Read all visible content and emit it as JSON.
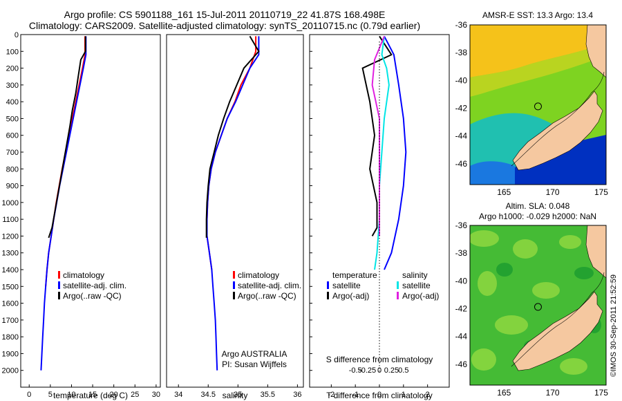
{
  "header": {
    "line1": "Argo profile: CS 5901188_161 15-Jul-2011 20110719_22 41.87S 168.498E",
    "line2": "Climatology: CARS2009. Satellite-adjusted climatology: synTS_20110715.nc (0.79d earlier)"
  },
  "colors": {
    "climatology": "#ff0000",
    "satellite": "#0000ff",
    "argo": "#000000",
    "salinity_satellite": "#00e5e5",
    "salinity_argo": "#e020e0",
    "land": "#f5c8a0",
    "sst_warm": "#f5c21a",
    "sst_mid": "#20c060",
    "sst_cool": "#0030c0",
    "sla_field": "#50c030"
  },
  "chart_data": [
    {
      "type": "line",
      "panel": "temperature",
      "xlabel": "temperature (deg C)",
      "ylabel": "",
      "xlim": [
        -2,
        31
      ],
      "ylim": [
        2100,
        0
      ],
      "xticks": [
        0,
        5,
        10,
        15,
        20,
        25,
        30
      ],
      "yticks": [
        0,
        100,
        200,
        300,
        400,
        500,
        600,
        700,
        800,
        900,
        1000,
        1100,
        1200,
        1300,
        1400,
        1500,
        1600,
        1700,
        1800,
        1900,
        2000
      ],
      "legend": {
        "position": "bottom-right",
        "items": [
          "climatology",
          "satellite-adj. clim.",
          "Argo(..raw -QC)"
        ]
      },
      "series": [
        {
          "name": "climatology",
          "points": [
            [
              13.2,
              10
            ],
            [
              13.2,
              120
            ],
            [
              12.6,
              200
            ],
            [
              11.8,
              300
            ],
            [
              11.0,
              400
            ],
            [
              10.2,
              500
            ],
            [
              9.4,
              600
            ],
            [
              8.6,
              700
            ],
            [
              7.8,
              800
            ],
            [
              7.1,
              900
            ],
            [
              6.4,
              1000
            ],
            [
              5.8,
              1100
            ],
            [
              5.2,
              1200
            ],
            [
              4.6,
              1300
            ],
            [
              4.2,
              1400
            ],
            [
              3.9,
              1500
            ]
          ]
        },
        {
          "name": "satellite-adj. clim.",
          "points": [
            [
              13.4,
              10
            ],
            [
              13.4,
              120
            ],
            [
              12.8,
              200
            ],
            [
              12.0,
              300
            ],
            [
              11.2,
              400
            ],
            [
              10.4,
              500
            ],
            [
              9.6,
              600
            ],
            [
              8.8,
              700
            ],
            [
              8.0,
              800
            ],
            [
              7.2,
              900
            ],
            [
              6.5,
              1000
            ],
            [
              5.8,
              1100
            ],
            [
              5.2,
              1200
            ],
            [
              4.6,
              1300
            ],
            [
              4.2,
              1400
            ],
            [
              3.9,
              1500
            ],
            [
              3.6,
              1600
            ],
            [
              3.4,
              1700
            ],
            [
              3.2,
              1800
            ],
            [
              3.0,
              1900
            ],
            [
              2.8,
              2000
            ]
          ]
        },
        {
          "name": "Argo(..raw -QC)",
          "points": [
            [
              13.3,
              10
            ],
            [
              13.3,
              100
            ],
            [
              12.2,
              150
            ],
            [
              11.6,
              250
            ],
            [
              11.0,
              350
            ],
            [
              10.2,
              450
            ],
            [
              9.6,
              550
            ],
            [
              8.9,
              650
            ],
            [
              8.2,
              750
            ],
            [
              7.5,
              850
            ],
            [
              6.8,
              950
            ],
            [
              6.1,
              1050
            ],
            [
              5.4,
              1150
            ],
            [
              4.6,
              1210
            ]
          ]
        }
      ]
    },
    {
      "type": "line",
      "panel": "salinity",
      "xlabel": "salinity",
      "xlim": [
        33.8,
        36.1
      ],
      "ylim": [
        2100,
        0
      ],
      "xticks": [
        34,
        34.5,
        35,
        35.5,
        36
      ],
      "legend": {
        "position": "bottom-right",
        "items": [
          "climatology",
          "satellite-adj. clim.",
          "Argo(..raw -QC)"
        ]
      },
      "annotations": [
        "Argo AUSTRALIA",
        "PI: Susan Wijffels"
      ],
      "series": [
        {
          "name": "climatology",
          "points": [
            [
              35.3,
              10
            ],
            [
              35.3,
              100
            ],
            [
              35.2,
              200
            ],
            [
              35.05,
              300
            ],
            [
              34.95,
              400
            ],
            [
              34.82,
              500
            ],
            [
              34.72,
              600
            ],
            [
              34.62,
              700
            ],
            [
              34.55,
              800
            ],
            [
              34.51,
              900
            ],
            [
              34.49,
              1000
            ],
            [
              34.48,
              1100
            ],
            [
              34.48,
              1200
            ],
            [
              34.52,
              1300
            ],
            [
              34.56,
              1400
            ]
          ]
        },
        {
          "name": "satellite-adj. clim.",
          "points": [
            [
              35.35,
              10
            ],
            [
              35.35,
              120
            ],
            [
              35.2,
              200
            ],
            [
              35.08,
              300
            ],
            [
              34.96,
              400
            ],
            [
              34.82,
              500
            ],
            [
              34.72,
              600
            ],
            [
              34.62,
              700
            ],
            [
              34.55,
              800
            ],
            [
              34.51,
              900
            ],
            [
              34.49,
              1000
            ],
            [
              34.48,
              1100
            ],
            [
              34.48,
              1200
            ],
            [
              34.52,
              1300
            ],
            [
              34.56,
              1400
            ],
            [
              34.58,
              1500
            ],
            [
              34.6,
              1600
            ],
            [
              34.62,
              1700
            ],
            [
              34.63,
              1800
            ],
            [
              34.64,
              1900
            ],
            [
              34.65,
              2000
            ]
          ]
        },
        {
          "name": "Argo(..raw -QC)",
          "points": [
            [
              35.2,
              10
            ],
            [
              35.35,
              100
            ],
            [
              35.1,
              200
            ],
            [
              34.98,
              300
            ],
            [
              34.86,
              400
            ],
            [
              34.76,
              500
            ],
            [
              34.67,
              600
            ],
            [
              34.6,
              700
            ],
            [
              34.53,
              800
            ],
            [
              34.5,
              900
            ],
            [
              34.48,
              1000
            ],
            [
              34.47,
              1100
            ],
            [
              34.47,
              1210
            ]
          ]
        }
      ]
    },
    {
      "type": "line",
      "panel": "difference",
      "xlabel": "T difference from climatology",
      "secondary_xlabel": "S difference from climatology",
      "xlim": [
        -2.9,
        2.9
      ],
      "ylim": [
        2100,
        0
      ],
      "xticks": [
        -2,
        -1,
        0,
        1,
        2
      ],
      "secondary_xticks": [
        -0.5,
        -0.25,
        0,
        0.25,
        0.5
      ],
      "legend": {
        "position": "bottom",
        "groups": [
          {
            "title": "temperature",
            "items": [
              "satellite",
              "Argo(-adj)"
            ]
          },
          {
            "title": "salinity",
            "items": [
              "satellite",
              "Argo(-adj)"
            ]
          }
        ]
      },
      "series": [
        {
          "name": "temperature satellite",
          "points": [
            [
              0.2,
              10
            ],
            [
              0.6,
              120
            ],
            [
              0.8,
              300
            ],
            [
              1.0,
              500
            ],
            [
              1.1,
              700
            ],
            [
              1.0,
              900
            ],
            [
              0.8,
              1100
            ],
            [
              0.5,
              1300
            ],
            [
              0.2,
              1400
            ]
          ]
        },
        {
          "name": "temperature Argo(-adj)",
          "points": [
            [
              0.0,
              10
            ],
            [
              0.5,
              120
            ],
            [
              -0.7,
              200
            ],
            [
              -0.4,
              400
            ],
            [
              -0.2,
              600
            ],
            [
              -0.4,
              800
            ],
            [
              -0.1,
              1000
            ],
            [
              -0.1,
              1150
            ],
            [
              -0.3,
              1200
            ]
          ]
        },
        {
          "name": "salinity satellite",
          "points": [
            [
              0.1,
              10
            ],
            [
              0.05,
              120
            ],
            [
              0.15,
              200
            ],
            [
              0.2,
              300
            ],
            [
              0.1,
              500
            ],
            [
              0.05,
              700
            ],
            [
              0.0,
              900
            ],
            [
              0.0,
              1100
            ],
            [
              -0.05,
              1300
            ],
            [
              -0.1,
              1400
            ]
          ]
        },
        {
          "name": "salinity Argo(-adj)",
          "points": [
            [
              0.1,
              10
            ],
            [
              -0.1,
              150
            ],
            [
              -0.15,
              300
            ],
            [
              0.0,
              500
            ],
            [
              0.0,
              700
            ],
            [
              0.0,
              900
            ],
            [
              0.0,
              1100
            ],
            [
              0.0,
              1200
            ]
          ]
        }
      ]
    },
    {
      "type": "heatmap",
      "panel": "sst-map",
      "title": "AMSR-E SST: 13.3 Argo: 13.4",
      "xlim": [
        161.5,
        175.5
      ],
      "ylim": [
        -47.5,
        -36
      ],
      "xticks": [
        165,
        170,
        175
      ],
      "yticks": [
        -36,
        -38,
        -40,
        -42,
        -44,
        -46
      ],
      "marker": [
        168.498,
        -41.87
      ]
    },
    {
      "type": "heatmap",
      "panel": "sla-map",
      "title_line1": "Altim. SLA: 0.048",
      "title_line2": "Argo h1000: -0.029 h2000: NaN",
      "xlim": [
        161.5,
        175.5
      ],
      "ylim": [
        -47.5,
        -36
      ],
      "xticks": [
        165,
        170,
        175
      ],
      "yticks": [
        -36,
        -38,
        -40,
        -42,
        -44,
        -46
      ],
      "marker": [
        168.498,
        -41.87
      ]
    }
  ],
  "footer": {
    "credit": "©IMOS 30-Sep-2011 21:52:59"
  }
}
